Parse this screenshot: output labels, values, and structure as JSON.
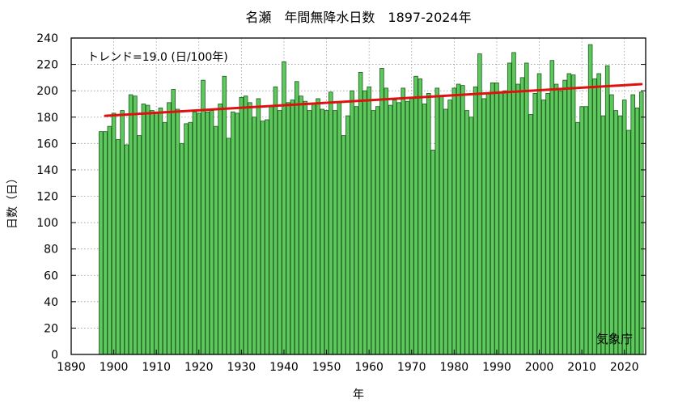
{
  "chart_data": {
    "type": "bar",
    "title": "名瀬　年間無降水日数　1897-2024年",
    "xlabel": "年",
    "ylabel": "日数（日）",
    "xlim": [
      1890,
      2025
    ],
    "ylim": [
      0,
      240
    ],
    "x_ticks": [
      "1890",
      "1900",
      "1910",
      "1920",
      "1930",
      "1940",
      "1950",
      "1960",
      "1970",
      "1980",
      "1990",
      "2000",
      "2010",
      "2020"
    ],
    "x_tick_values": [
      1890,
      1900,
      1910,
      1920,
      1930,
      1940,
      1950,
      1960,
      1970,
      1980,
      1990,
      2000,
      2010,
      2020
    ],
    "y_ticks": [
      "0",
      "20",
      "40",
      "60",
      "80",
      "100",
      "120",
      "140",
      "160",
      "180",
      "200",
      "220",
      "240"
    ],
    "y_tick_values": [
      0,
      20,
      40,
      60,
      80,
      100,
      120,
      140,
      160,
      180,
      200,
      220,
      240
    ],
    "grid": true,
    "bar_color": "#5ec85e",
    "bar_edge_color": "#1a5a1a",
    "trend_color": "#e01010",
    "trend_label": "トレンド=19.0 (日/100年)",
    "trend": {
      "x": [
        1898,
        2024
      ],
      "y": [
        181,
        205
      ]
    },
    "credit": "気象庁",
    "series": [
      {
        "x": [
          1897,
          1898,
          1899,
          1900,
          1901,
          1902,
          1903,
          1904,
          1905,
          1906,
          1907,
          1908,
          1909,
          1910,
          1911,
          1912,
          1913,
          1914,
          1915,
          1916,
          1917,
          1918,
          1919,
          1920,
          1921,
          1922,
          1923,
          1924,
          1925,
          1926,
          1927,
          1928,
          1929,
          1930,
          1931,
          1932,
          1933,
          1934,
          1935,
          1936,
          1937,
          1938,
          1939,
          1940,
          1941,
          1942,
          1943,
          1944,
          1945,
          1946,
          1947,
          1948,
          1949,
          1950,
          1951,
          1952,
          1953,
          1954,
          1955,
          1956,
          1957,
          1958,
          1959,
          1960,
          1961,
          1962,
          1963,
          1964,
          1965,
          1966,
          1967,
          1968,
          1969,
          1970,
          1971,
          1972,
          1973,
          1974,
          1975,
          1976,
          1977,
          1978,
          1979,
          1980,
          1981,
          1982,
          1983,
          1984,
          1985,
          1986,
          1987,
          1988,
          1989,
          1990,
          1991,
          1992,
          1993,
          1994,
          1995,
          1996,
          1997,
          1998,
          1999,
          2000,
          2001,
          2002,
          2003,
          2004,
          2005,
          2006,
          2007,
          2008,
          2009,
          2010,
          2011,
          2012,
          2013,
          2014,
          2015,
          2016,
          2017,
          2018,
          2019,
          2020,
          2021,
          2022,
          2023,
          2024
        ],
        "values": [
          169,
          169,
          173,
          183,
          163,
          185,
          159,
          197,
          196,
          166,
          190,
          189,
          185,
          184,
          187,
          176,
          191,
          201,
          186,
          160,
          175,
          176,
          184,
          183,
          208,
          184,
          185,
          173,
          190,
          211,
          164,
          184,
          183,
          195,
          196,
          191,
          180,
          194,
          177,
          178,
          188,
          203,
          185,
          222,
          191,
          193,
          207,
          196,
          192,
          185,
          190,
          194,
          186,
          185,
          199,
          185,
          191,
          166,
          181,
          200,
          188,
          214,
          200,
          203,
          185,
          188,
          217,
          202,
          189,
          193,
          191,
          202,
          192,
          195,
          211,
          209,
          190,
          198,
          155,
          202,
          196,
          186,
          193,
          202,
          205,
          204,
          185,
          180,
          203,
          228,
          194,
          198,
          206,
          206,
          199,
          200,
          221,
          229,
          205,
          210,
          221,
          182,
          198,
          213,
          193,
          198,
          223,
          205,
          200,
          208,
          213,
          212,
          176,
          188,
          188,
          235,
          209,
          213,
          181,
          219,
          197,
          185,
          181,
          193,
          170,
          197,
          187,
          199
        ]
      }
    ]
  }
}
